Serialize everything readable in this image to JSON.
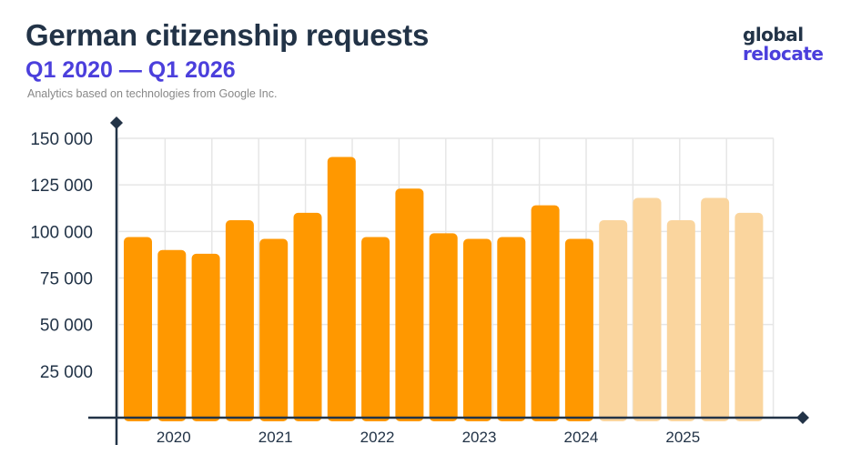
{
  "header": {
    "title": "German citizenship requests",
    "subtitle": "Q1 2020 — Q1 2026",
    "note": "Analytics based on technologies from Google Inc."
  },
  "logo": {
    "line1": "global",
    "line2": "relocate"
  },
  "colors": {
    "actual": "#ff9800",
    "projected": "#fad59e",
    "axis": "#223347",
    "grid": "#e6e6e6",
    "text": "#223347"
  },
  "chart_data": {
    "type": "bar",
    "title": "German citizenship requests",
    "subtitle": "Q1 2020 — Q1 2026",
    "ylim": [
      0,
      150000
    ],
    "y_ticks": [
      25000,
      50000,
      75000,
      100000,
      125000,
      150000
    ],
    "y_tick_labels": [
      "25 000",
      "50 000",
      "75 000",
      "100 000",
      "125 000",
      "150 000"
    ],
    "x_labels": [
      "2020",
      "2021",
      "2022",
      "2023",
      "2024",
      "2025"
    ],
    "grid": true,
    "series": [
      {
        "values": [
          97000,
          90000,
          88000,
          106000,
          96000,
          110000,
          140000,
          97000,
          123000,
          99000,
          96000,
          97000,
          114000,
          96000,
          106000,
          118000,
          106000,
          118000,
          110000
        ],
        "projected_from_index": 14
      }
    ]
  }
}
